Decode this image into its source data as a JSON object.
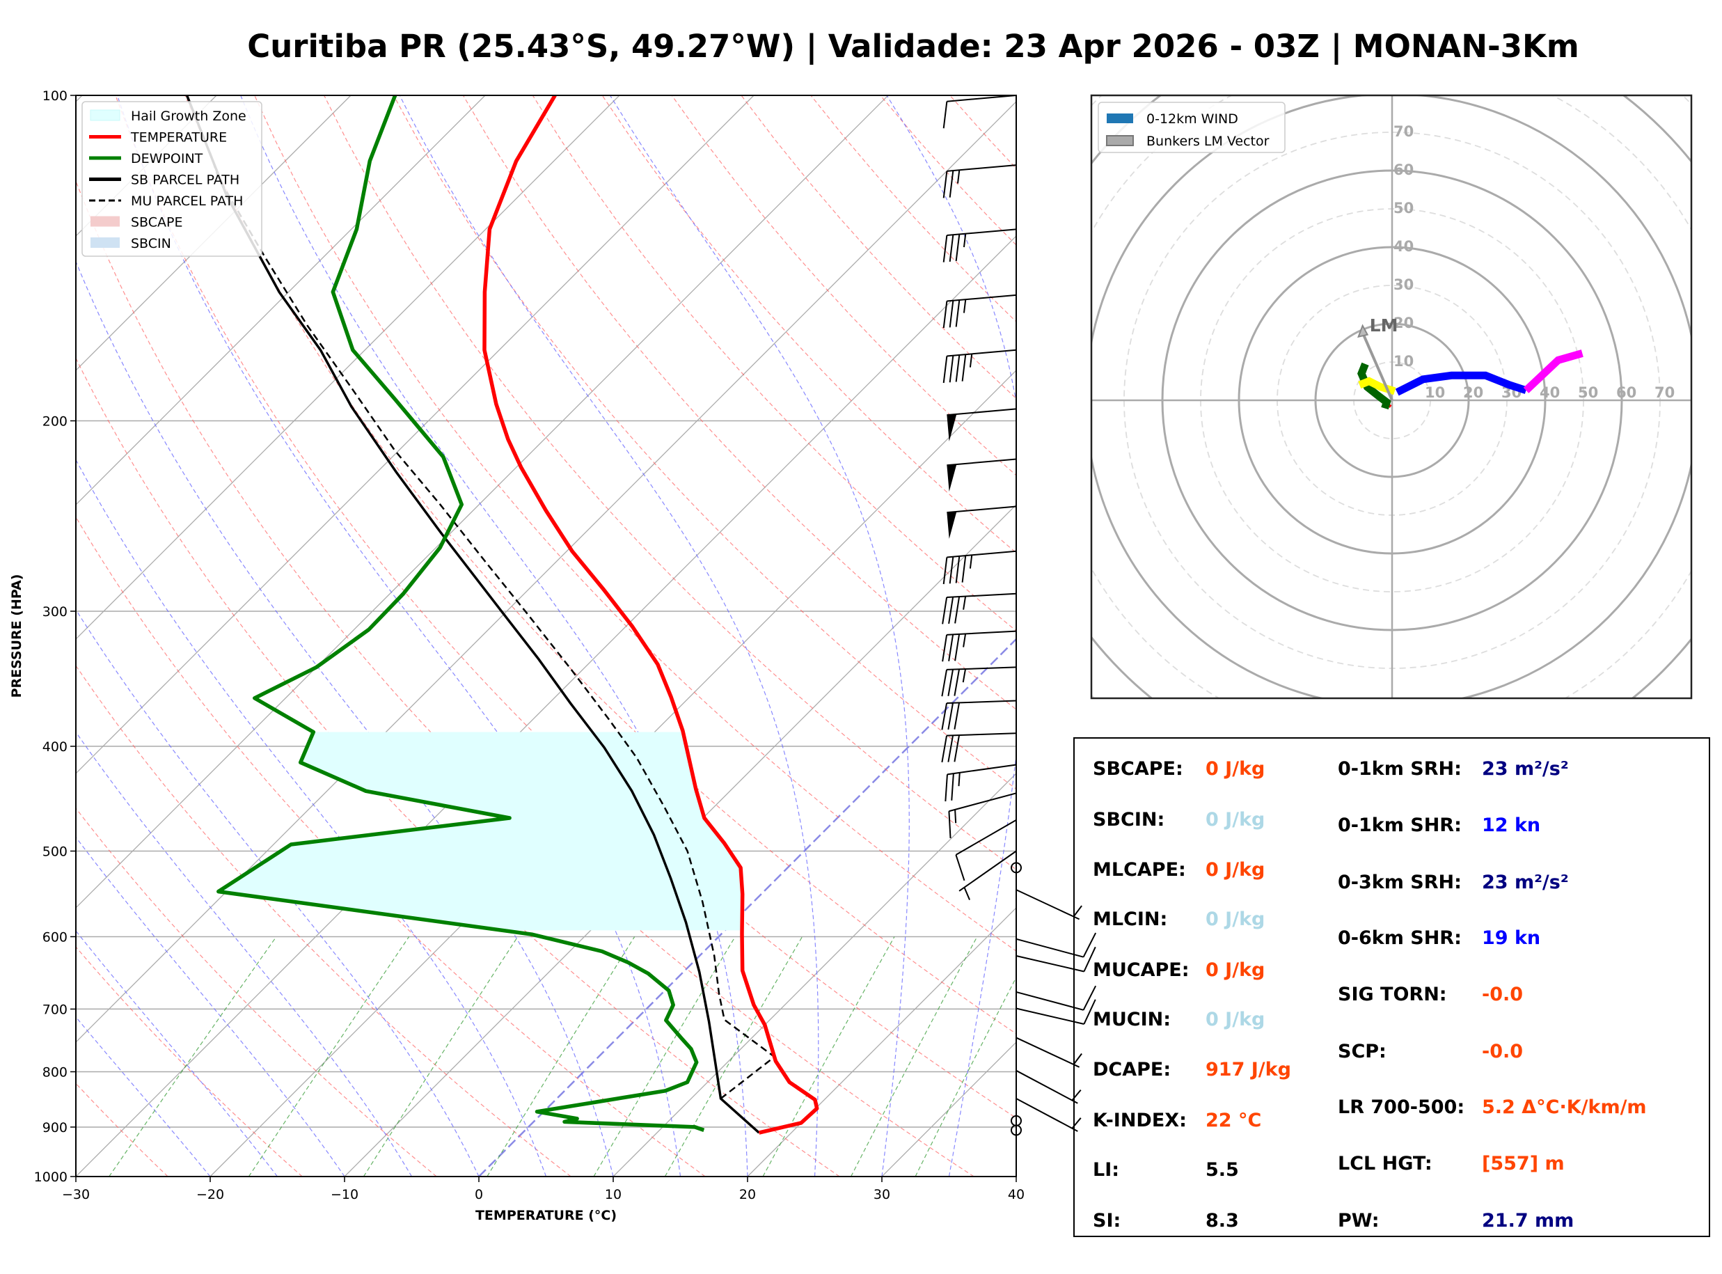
{
  "title": "Curitiba PR (25.43°S, 49.27°W) | Validade: 23 Apr 2026 - 03Z | MONAN-3Km",
  "chart_data": [
    {
      "type": "line",
      "kind": "skew-t log-p",
      "xlabel": "TEMPERATURE (°C)",
      "ylabel": "PRESSURE (HPA)",
      "xlim": [
        -30,
        40
      ],
      "ylim": [
        1000,
        100
      ],
      "y_scale": "log",
      "x_ticks": [
        -30,
        -20,
        -10,
        0,
        10,
        20,
        30,
        40
      ],
      "y_ticks": [
        100,
        200,
        300,
        400,
        500,
        600,
        700,
        800,
        900,
        1000
      ],
      "legend_position": "top-left",
      "legend": [
        {
          "label": "Hail Growth Zone",
          "color": "#e0ffff",
          "style": "patch"
        },
        {
          "label": "TEMPERATURE",
          "color": "#ff0000",
          "style": "solid"
        },
        {
          "label": "DEWPOINT",
          "color": "#008000",
          "style": "solid"
        },
        {
          "label": "SB PARCEL PATH",
          "color": "#000000",
          "style": "solid"
        },
        {
          "label": "MU PARCEL PATH",
          "color": "#000000",
          "style": "dashed"
        },
        {
          "label": "SBCAPE",
          "color": "#f4cccc",
          "style": "patch"
        },
        {
          "label": "SBCIN",
          "color": "#cfe2f3",
          "style": "patch"
        }
      ],
      "hail_growth_zone_hpa": [
        592,
        388
      ],
      "temperature": {
        "p": [
          911,
          892,
          865,
          849,
          818,
          782,
          724,
          694,
          645,
          596,
          548,
          518,
          492,
          466,
          438,
          387,
          360,
          336,
          310,
          286,
          264,
          242,
          221,
          208,
          193,
          172,
          152,
          133,
          115,
          100
        ],
        "t": [
          17.6,
          20.0,
          20.1,
          19.3,
          16.1,
          13.5,
          10.0,
          7.7,
          4.3,
          1.5,
          -1.4,
          -3.5,
          -6.5,
          -9.9,
          -12.7,
          -18.0,
          -21.4,
          -24.8,
          -29.5,
          -34.5,
          -39.6,
          -44.6,
          -49.6,
          -52.7,
          -56.2,
          -61.1,
          -65.4,
          -69.7,
          -72.8,
          -74.8
        ]
      },
      "dewpoint": {
        "p": [
          906,
          900,
          890,
          884,
          871,
          833,
          818,
          784,
          762,
          745,
          717,
          694,
          673,
          649,
          634,
          619,
          597,
          545,
          493,
          466,
          440,
          414,
          388,
          361,
          338,
          312,
          289,
          262,
          239,
          216,
          202,
          191,
          172,
          152,
          133,
          115,
          100
        ],
        "t": [
          13.3,
          12.4,
          2.3,
          3.0,
          -0.5,
          7.5,
          8.5,
          7.7,
          6.3,
          4.8,
          2.3,
          1.7,
          0.3,
          -2.5,
          -4.8,
          -7.6,
          -14.1,
          -40.6,
          -38.7,
          -24.4,
          -37.1,
          -44.1,
          -45.4,
          -52.3,
          -50.0,
          -48.9,
          -49.0,
          -49.7,
          -51.3,
          -56.2,
          -60.5,
          -64.1,
          -70.9,
          -76.7,
          -79.6,
          -83.7,
          -86.7
        ]
      },
      "sb_parcel": {
        "p": [
          911,
          847,
          790,
          719,
          647,
          582,
          530,
          483,
          440,
          401,
          365,
          332,
          299,
          254,
          223,
          194,
          172,
          152,
          124,
          100
        ],
        "t": [
          17.6,
          12.2,
          9.4,
          5.6,
          1.2,
          -3.5,
          -7.9,
          -12.4,
          -17.3,
          -22.6,
          -28.4,
          -34.1,
          -40.6,
          -50.7,
          -58.6,
          -66.8,
          -73.3,
          -80.7,
          -91.7,
          -102.2
        ]
      },
      "mu_parcel": {
        "p": [
          847,
          775,
          716,
          678,
          625,
          557,
          500,
          456,
          410,
          378,
          340,
          302,
          269,
          239,
          213,
          187,
          163,
          141,
          119,
          113
        ],
        "t": [
          12.2,
          13.1,
          6.6,
          4.3,
          1.1,
          -3.8,
          -8.7,
          -13.6,
          -19.4,
          -24.3,
          -30.8,
          -38.2,
          -45.5,
          -52.9,
          -60.3,
          -68.0,
          -76.2,
          -84.4,
          -93.8,
          -96.2
        ]
      },
      "wind_barbs_kt": [
        {
          "p": 100,
          "spd": 10,
          "dir": 265
        },
        {
          "p": 116,
          "spd": 25,
          "dir": 265
        },
        {
          "p": 133,
          "spd": 35,
          "dir": 265
        },
        {
          "p": 153,
          "spd": 35,
          "dir": 265
        },
        {
          "p": 172,
          "spd": 45,
          "dir": 265
        },
        {
          "p": 195,
          "spd": 50,
          "dir": 265
        },
        {
          "p": 217,
          "spd": 50,
          "dir": 265
        },
        {
          "p": 240,
          "spd": 50,
          "dir": 265
        },
        {
          "p": 264,
          "spd": 45,
          "dir": 265
        },
        {
          "p": 289,
          "spd": 35,
          "dir": 267
        },
        {
          "p": 313,
          "spd": 35,
          "dir": 267
        },
        {
          "p": 338,
          "spd": 35,
          "dir": 268
        },
        {
          "p": 363,
          "spd": 30,
          "dir": 268
        },
        {
          "p": 389,
          "spd": 30,
          "dir": 268
        },
        {
          "p": 416,
          "spd": 25,
          "dir": 262
        },
        {
          "p": 442,
          "spd": 15,
          "dir": 255
        },
        {
          "p": 468,
          "spd": 10,
          "dir": 240
        },
        {
          "p": 500,
          "spd": 5,
          "dir": 235
        },
        {
          "p": 518,
          "spd": 0,
          "dir": 0
        },
        {
          "p": 543,
          "spd": 5,
          "dir": 115
        },
        {
          "p": 603,
          "spd": 10,
          "dir": 105
        },
        {
          "p": 625,
          "spd": 10,
          "dir": 103
        },
        {
          "p": 675,
          "spd": 10,
          "dir": 105
        },
        {
          "p": 699,
          "spd": 10,
          "dir": 103
        },
        {
          "p": 744,
          "spd": 5,
          "dir": 115
        },
        {
          "p": 798,
          "spd": 5,
          "dir": 118
        },
        {
          "p": 847,
          "spd": 5,
          "dir": 118
        },
        {
          "p": 888,
          "spd": 0,
          "dir": 0
        },
        {
          "p": 906,
          "spd": 0,
          "dir": 0
        }
      ]
    },
    {
      "type": "line",
      "kind": "hodograph",
      "units": "kt",
      "ring_labels": [
        10,
        20,
        30,
        40,
        50,
        60,
        70
      ],
      "legend_position": "top-left",
      "legend": [
        {
          "label": "0-12km WIND",
          "color": "#1f77b4"
        },
        {
          "label": "Bunkers LM Vector",
          "color": "#aaaaaa"
        }
      ],
      "segments": [
        {
          "color": "#ff0000",
          "u": [
            -0.3,
            -0.8
          ],
          "v": [
            -1.2,
            -1.8
          ]
        },
        {
          "color": "#006400",
          "u": [
            -1.9,
            -1.4,
            -4.0,
            -6.5,
            -8.0,
            -7.0
          ],
          "v": [
            -2.1,
            -0.5,
            1.5,
            3.5,
            7.0,
            9.5
          ]
        },
        {
          "color": "#ffff00",
          "u": [
            -8.5,
            -6.0,
            -3.0,
            0.7
          ],
          "v": [
            4.0,
            5.0,
            3.5,
            2.4
          ]
        },
        {
          "color": "#0000ff",
          "u": [
            1.3,
            8.1,
            15.5,
            24.4,
            30.7,
            35.0
          ],
          "v": [
            2.1,
            5.5,
            6.5,
            6.5,
            4.0,
            2.6
          ]
        },
        {
          "color": "#ff00ff",
          "u": [
            35.0,
            43.4,
            49.7
          ],
          "v": [
            2.6,
            10.5,
            12.3
          ]
        }
      ],
      "bunkers_lm": {
        "label": "LM",
        "u": -7.7,
        "v": 19.5
      }
    }
  ],
  "indices": {
    "left": [
      {
        "label": "SBCAPE:",
        "value": "0 J/kg",
        "color": "#ff4500"
      },
      {
        "label": "SBCIN:",
        "value": "0 J/kg",
        "color": "#add8e6"
      },
      {
        "label": "MLCAPE:",
        "value": "0 J/kg",
        "color": "#ff4500"
      },
      {
        "label": "MLCIN:",
        "value": "0 J/kg",
        "color": "#add8e6"
      },
      {
        "label": "MUCAPE:",
        "value": "0 J/kg",
        "color": "#ff4500"
      },
      {
        "label": "MUCIN:",
        "value": "0 J/kg",
        "color": "#add8e6"
      },
      {
        "label": "DCAPE:",
        "value": "917 J/kg",
        "color": "#ff4500"
      },
      {
        "label": "K-INDEX:",
        "value": "22 °C",
        "color": "#ff4500"
      },
      {
        "label": "LI:",
        "value": "5.5",
        "color": "#000000"
      },
      {
        "label": "SI:",
        "value": "8.3",
        "color": "#000000"
      }
    ],
    "right": [
      {
        "label": "0-1km SRH:",
        "value": "23 m²/s²",
        "color": "#000080"
      },
      {
        "label": "0-1km SHR:",
        "value": "12 kn",
        "color": "#0000ff"
      },
      {
        "label": "0-3km SRH:",
        "value": "23 m²/s²",
        "color": "#000080"
      },
      {
        "label": "0-6km SHR:",
        "value": "19 kn",
        "color": "#0000ff"
      },
      {
        "label": "SIG TORN:",
        "value": "-0.0",
        "color": "#ff4500"
      },
      {
        "label": "SCP:",
        "value": "-0.0",
        "color": "#ff4500"
      },
      {
        "label": "LR 700-500:",
        "value": "5.2 Δ°C·K/km/m",
        "color": "#ff4500"
      },
      {
        "label": "LCL HGT:",
        "value": "[557] m",
        "color": "#ff4500"
      },
      {
        "label": "PW:",
        "value": "21.7 mm",
        "color": "#000080"
      }
    ]
  }
}
